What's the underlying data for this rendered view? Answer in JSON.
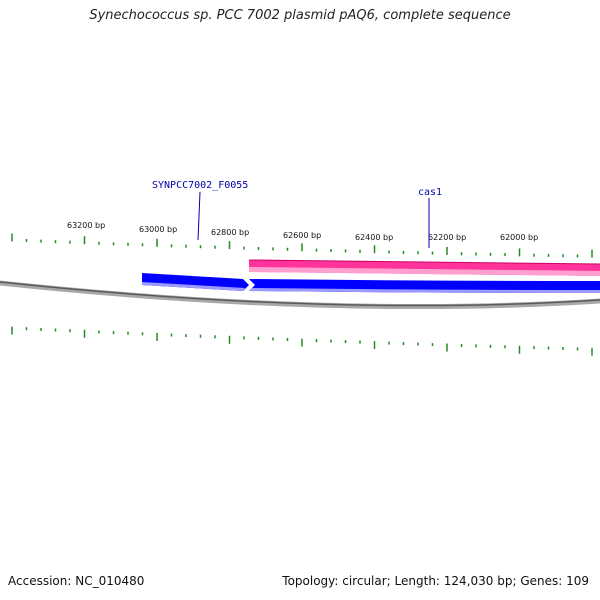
{
  "title": "Synechococcus sp. PCC 7002 plasmid pAQ6, complete sequence",
  "footer": {
    "accession": "Accession: NC_010480",
    "summary": "Topology: circular; Length: 124,030 bp; Genes: 109"
  },
  "colors": {
    "backbone": "#808080",
    "tick": "#228b22",
    "forward_feature": "#ff3399",
    "reverse_feature": "#0000ff",
    "label": "#0000aa"
  },
  "ruler": {
    "tick_labels": [
      "63200 bp",
      "63000 bp",
      "62800 bp",
      "62600 bp",
      "62400 bp",
      "62200 bp",
      "62000 bp"
    ]
  },
  "genes": [
    {
      "label": "SYNPCC7002_F0055",
      "strand": "reverse"
    },
    {
      "label": "cas1",
      "strand": "reverse"
    },
    {
      "label": "",
      "strand": "forward"
    }
  ]
}
